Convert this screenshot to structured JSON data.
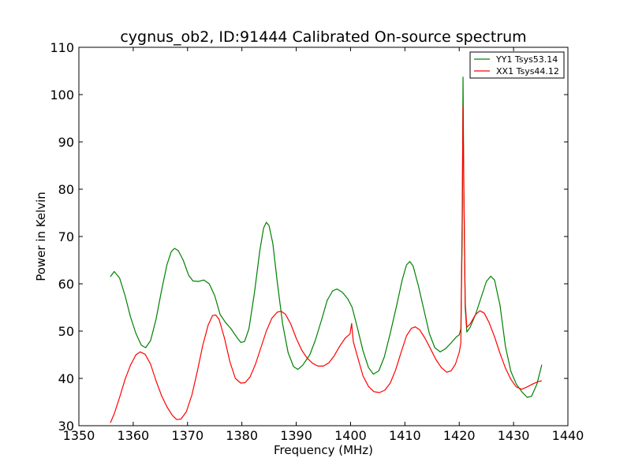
{
  "chart_data": {
    "type": "line",
    "title": "cygnus_ob2, ID:91444 Calibrated On-source spectrum",
    "xlabel": "Frequency (MHz)",
    "ylabel": "Power in Kelvin",
    "xlim": [
      1350,
      1440
    ],
    "ylim": [
      30,
      110
    ],
    "xticks": [
      1350,
      1360,
      1370,
      1380,
      1390,
      1400,
      1410,
      1420,
      1430,
      1440
    ],
    "yticks": [
      30,
      40,
      50,
      60,
      70,
      80,
      90,
      100,
      110
    ],
    "grid": false,
    "legend_position": "top-right",
    "series": [
      {
        "name": "YY1 Tsys53.14",
        "color": "#008000",
        "points": [
          [
            1355.8,
            61.5
          ],
          [
            1356.5,
            62.6
          ],
          [
            1357.5,
            61.2
          ],
          [
            1358.5,
            57.5
          ],
          [
            1359.5,
            53.0
          ],
          [
            1360.5,
            49.5
          ],
          [
            1361.5,
            47.0
          ],
          [
            1362.3,
            46.5
          ],
          [
            1363.2,
            48.0
          ],
          [
            1364.2,
            52.5
          ],
          [
            1365.2,
            58.5
          ],
          [
            1366.2,
            64.0
          ],
          [
            1367.0,
            66.8
          ],
          [
            1367.6,
            67.5
          ],
          [
            1368.3,
            67.0
          ],
          [
            1369.2,
            65.0
          ],
          [
            1370.2,
            61.8
          ],
          [
            1371.0,
            60.6
          ],
          [
            1372.0,
            60.5
          ],
          [
            1373.0,
            60.8
          ],
          [
            1374.0,
            60.0
          ],
          [
            1375.0,
            57.5
          ],
          [
            1376.0,
            53.5
          ],
          [
            1377.0,
            51.8
          ],
          [
            1378.0,
            50.5
          ],
          [
            1379.0,
            48.8
          ],
          [
            1379.8,
            47.6
          ],
          [
            1380.5,
            47.8
          ],
          [
            1381.3,
            50.5
          ],
          [
            1382.3,
            58.0
          ],
          [
            1383.3,
            67.0
          ],
          [
            1384.0,
            71.8
          ],
          [
            1384.5,
            73.0
          ],
          [
            1385.0,
            72.3
          ],
          [
            1385.7,
            68.5
          ],
          [
            1386.5,
            60.5
          ],
          [
            1387.5,
            51.5
          ],
          [
            1388.5,
            45.5
          ],
          [
            1389.5,
            42.5
          ],
          [
            1390.3,
            41.9
          ],
          [
            1391.2,
            42.8
          ],
          [
            1392.5,
            45.0
          ],
          [
            1393.5,
            48.0
          ],
          [
            1394.7,
            52.5
          ],
          [
            1395.7,
            56.5
          ],
          [
            1396.7,
            58.5
          ],
          [
            1397.5,
            58.9
          ],
          [
            1398.5,
            58.2
          ],
          [
            1399.5,
            56.8
          ],
          [
            1400.3,
            55.0
          ],
          [
            1401.3,
            50.5
          ],
          [
            1402.3,
            45.8
          ],
          [
            1403.3,
            42.3
          ],
          [
            1404.2,
            40.9
          ],
          [
            1405.2,
            41.6
          ],
          [
            1406.2,
            44.5
          ],
          [
            1407.3,
            49.5
          ],
          [
            1408.5,
            55.5
          ],
          [
            1409.5,
            60.8
          ],
          [
            1410.3,
            64.0
          ],
          [
            1410.9,
            64.7
          ],
          [
            1411.5,
            63.8
          ],
          [
            1412.5,
            59.5
          ],
          [
            1413.5,
            54.5
          ],
          [
            1414.5,
            49.5
          ],
          [
            1415.5,
            46.5
          ],
          [
            1416.5,
            45.6
          ],
          [
            1417.5,
            46.3
          ],
          [
            1418.5,
            47.5
          ],
          [
            1419.5,
            48.8
          ],
          [
            1420.0,
            49.2
          ],
          [
            1420.3,
            50.5
          ],
          [
            1420.55,
            70.0
          ],
          [
            1420.7,
            103.7
          ],
          [
            1420.85,
            80.0
          ],
          [
            1421.1,
            55.0
          ],
          [
            1421.4,
            49.8
          ],
          [
            1422.0,
            50.8
          ],
          [
            1423.0,
            53.5
          ],
          [
            1424.0,
            57.0
          ],
          [
            1425.0,
            60.5
          ],
          [
            1425.8,
            61.6
          ],
          [
            1426.5,
            60.8
          ],
          [
            1427.5,
            55.5
          ],
          [
            1428.5,
            46.8
          ],
          [
            1429.5,
            41.5
          ],
          [
            1430.5,
            38.8
          ],
          [
            1431.5,
            37.2
          ],
          [
            1432.5,
            36.0
          ],
          [
            1433.3,
            36.2
          ],
          [
            1434.3,
            38.8
          ],
          [
            1435.2,
            42.9
          ]
        ]
      },
      {
        "name": "XX1 Tsys44.12",
        "color": "#ff0000",
        "points": [
          [
            1355.8,
            30.6
          ],
          [
            1356.5,
            32.5
          ],
          [
            1357.5,
            36.0
          ],
          [
            1358.5,
            39.8
          ],
          [
            1359.5,
            42.8
          ],
          [
            1360.5,
            45.0
          ],
          [
            1361.3,
            45.6
          ],
          [
            1362.2,
            45.1
          ],
          [
            1363.2,
            43.0
          ],
          [
            1364.2,
            39.5
          ],
          [
            1365.2,
            36.4
          ],
          [
            1366.2,
            34.0
          ],
          [
            1367.2,
            32.2
          ],
          [
            1368.0,
            31.3
          ],
          [
            1368.8,
            31.4
          ],
          [
            1369.8,
            33.0
          ],
          [
            1370.8,
            36.5
          ],
          [
            1371.8,
            41.5
          ],
          [
            1372.8,
            47.0
          ],
          [
            1373.8,
            51.3
          ],
          [
            1374.6,
            53.3
          ],
          [
            1375.2,
            53.4
          ],
          [
            1375.8,
            52.5
          ],
          [
            1376.8,
            48.5
          ],
          [
            1377.8,
            43.5
          ],
          [
            1378.8,
            40.0
          ],
          [
            1379.8,
            39.0
          ],
          [
            1380.6,
            39.1
          ],
          [
            1381.5,
            40.3
          ],
          [
            1382.5,
            43.0
          ],
          [
            1383.5,
            46.5
          ],
          [
            1384.5,
            50.0
          ],
          [
            1385.5,
            52.7
          ],
          [
            1386.5,
            54.0
          ],
          [
            1387.2,
            54.2
          ],
          [
            1388.0,
            53.6
          ],
          [
            1389.0,
            51.5
          ],
          [
            1390.0,
            48.5
          ],
          [
            1391.0,
            46.0
          ],
          [
            1392.0,
            44.3
          ],
          [
            1393.0,
            43.2
          ],
          [
            1394.0,
            42.6
          ],
          [
            1395.0,
            42.6
          ],
          [
            1396.0,
            43.3
          ],
          [
            1397.0,
            44.8
          ],
          [
            1398.0,
            46.8
          ],
          [
            1399.0,
            48.5
          ],
          [
            1399.6,
            49.1
          ],
          [
            1399.9,
            49.4
          ],
          [
            1400.2,
            51.6
          ],
          [
            1400.5,
            47.8
          ],
          [
            1401.3,
            44.5
          ],
          [
            1402.3,
            40.5
          ],
          [
            1403.3,
            38.3
          ],
          [
            1404.3,
            37.2
          ],
          [
            1405.3,
            37.0
          ],
          [
            1406.3,
            37.5
          ],
          [
            1407.3,
            39.0
          ],
          [
            1408.3,
            41.8
          ],
          [
            1409.3,
            45.5
          ],
          [
            1410.3,
            49.0
          ],
          [
            1411.2,
            50.6
          ],
          [
            1411.9,
            50.9
          ],
          [
            1412.7,
            50.3
          ],
          [
            1413.7,
            48.5
          ],
          [
            1414.7,
            46.3
          ],
          [
            1415.7,
            44.0
          ],
          [
            1416.7,
            42.3
          ],
          [
            1417.7,
            41.3
          ],
          [
            1418.5,
            41.6
          ],
          [
            1419.3,
            43.0
          ],
          [
            1420.0,
            45.5
          ],
          [
            1420.3,
            47.5
          ],
          [
            1420.55,
            75.0
          ],
          [
            1420.7,
            97.5
          ],
          [
            1420.85,
            80.0
          ],
          [
            1421.1,
            56.0
          ],
          [
            1421.4,
            50.8
          ],
          [
            1422.0,
            51.5
          ],
          [
            1423.0,
            53.5
          ],
          [
            1423.8,
            54.3
          ],
          [
            1424.6,
            53.8
          ],
          [
            1425.5,
            51.8
          ],
          [
            1426.5,
            48.8
          ],
          [
            1427.5,
            45.3
          ],
          [
            1428.5,
            42.2
          ],
          [
            1429.5,
            39.8
          ],
          [
            1430.5,
            38.2
          ],
          [
            1431.5,
            37.7
          ],
          [
            1432.5,
            38.2
          ],
          [
            1433.5,
            38.8
          ],
          [
            1434.5,
            39.3
          ],
          [
            1435.2,
            39.5
          ]
        ]
      }
    ]
  }
}
